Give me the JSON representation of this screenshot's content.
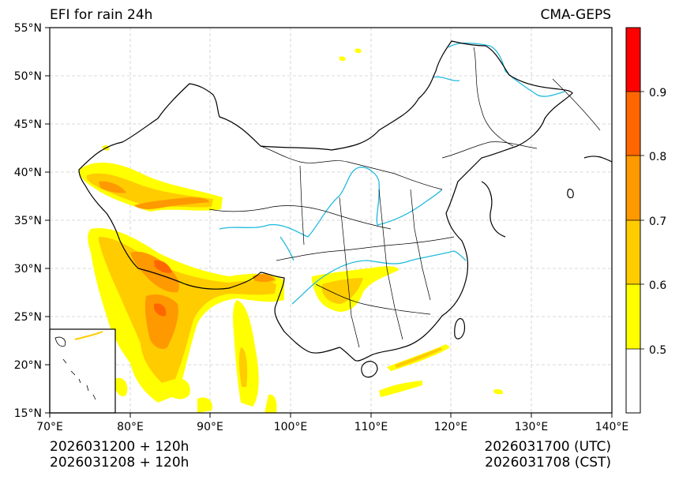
{
  "header": {
    "title_left": "EFI for rain 24h",
    "title_right": "CMA-GEPS"
  },
  "footer": {
    "init_utc": "2026031200 + 120h",
    "init_cst": "2026031208 + 120h",
    "valid_utc": "2026031700 (UTC)",
    "valid_cst": "2026031708 (CST)"
  },
  "axes": {
    "lon_labels": [
      "70°E",
      "80°E",
      "90°E",
      "100°E",
      "110°E",
      "120°E",
      "130°E",
      "140°E"
    ],
    "lat_labels": [
      "55°N",
      "50°N",
      "45°N",
      "40°N",
      "35°N",
      "30°N",
      "25°N",
      "20°N",
      "15°N"
    ]
  },
  "colorbar": {
    "labels": [
      "0.9",
      "0.8",
      "0.7",
      "0.6",
      "0.5"
    ],
    "colors": [
      "#ff0000",
      "#ff6600",
      "#ff9900",
      "#ffcc00",
      "#ffff00",
      "#ffffff"
    ]
  },
  "colors": {
    "river": "#22bbdd",
    "border": "#000000",
    "grid": "#cccccc"
  }
}
